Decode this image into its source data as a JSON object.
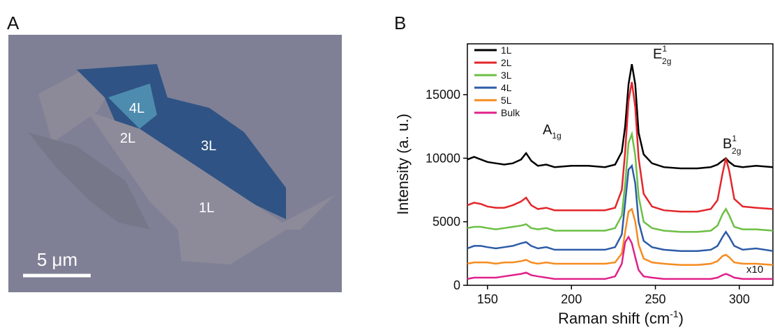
{
  "panel_a": {
    "label": "A",
    "regions": [
      "4L",
      "2L",
      "3L",
      "1L"
    ],
    "scale_bar": "5 μm"
  },
  "chart_data": {
    "type": "line",
    "panel_label": "B",
    "xlabel": "Raman shift (cm",
    "xlabel_sup": "-1",
    "xlabel_end": ")",
    "ylabel": "Intensity (a. u.)",
    "x": [
      138,
      142,
      146,
      150,
      155,
      160,
      165,
      170,
      173,
      176,
      180,
      185,
      190,
      200,
      210,
      220,
      226,
      230,
      232,
      234,
      236,
      238,
      240,
      243,
      248,
      255,
      265,
      275,
      283,
      287,
      290,
      292,
      294,
      297,
      302,
      310,
      320
    ],
    "series": [
      {
        "name": "1L",
        "color": "#000000",
        "values": [
          9900,
          10100,
          9900,
          9700,
          9600,
          9500,
          9600,
          9900,
          10400,
          9800,
          9400,
          9500,
          9300,
          9400,
          9400,
          9300,
          9500,
          10500,
          12500,
          15800,
          17400,
          15800,
          12000,
          10300,
          9600,
          9300,
          9200,
          9200,
          9300,
          9500,
          9800,
          10000,
          9700,
          9400,
          9300,
          9400,
          9300
        ]
      },
      {
        "name": "2L",
        "color": "#e3262b",
        "values": [
          6300,
          6500,
          6400,
          6200,
          6100,
          6100,
          6300,
          6600,
          6900,
          6300,
          6000,
          6100,
          5900,
          5900,
          5900,
          5900,
          6100,
          7500,
          10500,
          14500,
          16000,
          14000,
          10000,
          7200,
          6200,
          5900,
          5800,
          5800,
          6000,
          6700,
          8800,
          10000,
          9000,
          6800,
          6200,
          6100,
          6000
        ]
      },
      {
        "name": "3L",
        "color": "#6cbf45",
        "values": [
          4500,
          4600,
          4600,
          4500,
          4400,
          4500,
          4600,
          4700,
          4800,
          4500,
          4400,
          4500,
          4300,
          4300,
          4300,
          4300,
          4500,
          5500,
          8000,
          11200,
          11900,
          10200,
          7000,
          5000,
          4500,
          4300,
          4200,
          4200,
          4300,
          4700,
          5600,
          6000,
          5500,
          4600,
          4400,
          4400,
          4300
        ]
      },
      {
        "name": "4L",
        "color": "#2d5ba7",
        "values": [
          2900,
          3100,
          3100,
          3000,
          2900,
          3000,
          3100,
          3300,
          3400,
          3100,
          2900,
          3000,
          2800,
          2800,
          2800,
          2800,
          3000,
          4000,
          6500,
          9100,
          9400,
          8000,
          5000,
          3500,
          3000,
          2800,
          2700,
          2700,
          2800,
          3100,
          3800,
          4200,
          3800,
          3100,
          2800,
          2900,
          2700
        ]
      },
      {
        "name": "5L",
        "color": "#f68b1f",
        "values": [
          1700,
          1800,
          1800,
          1800,
          1700,
          1800,
          1800,
          1900,
          2000,
          1800,
          1700,
          1800,
          1700,
          1700,
          1700,
          1700,
          1800,
          2500,
          4200,
          5800,
          6000,
          5000,
          3200,
          2100,
          1800,
          1700,
          1600,
          1600,
          1700,
          1900,
          2300,
          2400,
          2200,
          1800,
          1700,
          1700,
          1600
        ]
      },
      {
        "name": "Bulk",
        "color": "#e0218a",
        "values": [
          500,
          600,
          600,
          600,
          600,
          700,
          800,
          900,
          1000,
          800,
          700,
          600,
          500,
          500,
          500,
          500,
          700,
          1700,
          3400,
          3800,
          3300,
          2200,
          1200,
          700,
          600,
          500,
          500,
          500,
          500,
          600,
          800,
          900,
          800,
          600,
          500,
          500,
          500
        ]
      }
    ],
    "peak_labels": [
      {
        "base": "A",
        "sub": "1g"
      },
      {
        "base": "E",
        "sup": "1",
        "sub": "2g"
      },
      {
        "base": "B",
        "sup": "1",
        "sub": "2g"
      }
    ],
    "note": "x10",
    "xlim": [
      138,
      320
    ],
    "ylim": [
      0,
      19000
    ],
    "xticks": [
      150,
      200,
      250,
      300
    ],
    "yticks": [
      0,
      5000,
      10000,
      15000
    ]
  }
}
